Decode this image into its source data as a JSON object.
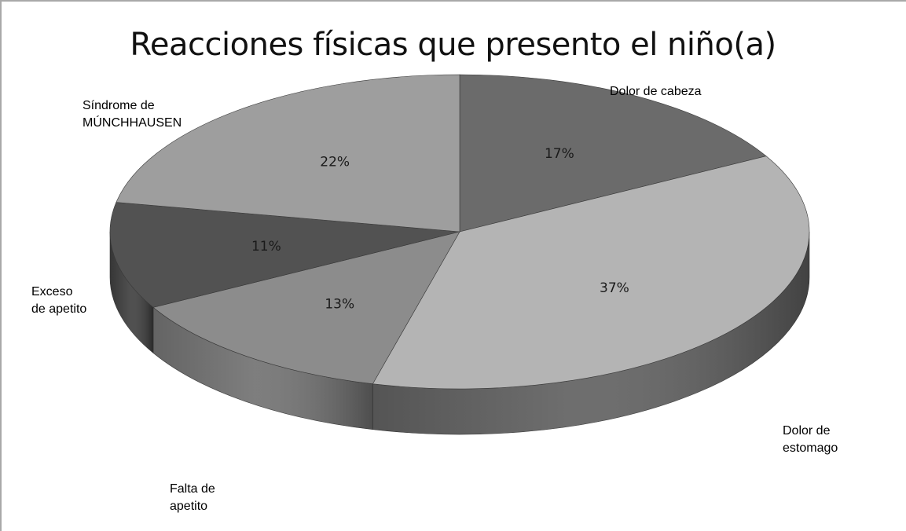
{
  "chart_data": {
    "type": "pie",
    "title": "Reacciones físicas que presento el niño(a)",
    "slices": [
      {
        "label_lines": [
          "Dolor de cabeza"
        ],
        "value": 17,
        "value_label": "17%",
        "color": "#6b6b6b",
        "side_color": "#4a4a4a"
      },
      {
        "label_lines": [
          "Dolor de",
          "estomago"
        ],
        "value": 37,
        "value_label": "37%",
        "color": "#b4b4b4",
        "side_color": "#5e5e5e"
      },
      {
        "label_lines": [
          "Falta de",
          "apetito"
        ],
        "value": 13,
        "value_label": "13%",
        "color": "#8c8c8c",
        "side_color": "#6f6f6f"
      },
      {
        "label_lines": [
          "Exceso",
          "de apetito"
        ],
        "value": 11,
        "value_label": "11%",
        "color": "#525252",
        "side_color": "#3c3c3c"
      },
      {
        "label_lines": [
          "Síndrome de",
          "MÚNCHHAUSEN"
        ],
        "value": 22,
        "value_label": "22%",
        "color": "#9e9e9e",
        "side_color": "#808080"
      }
    ]
  }
}
